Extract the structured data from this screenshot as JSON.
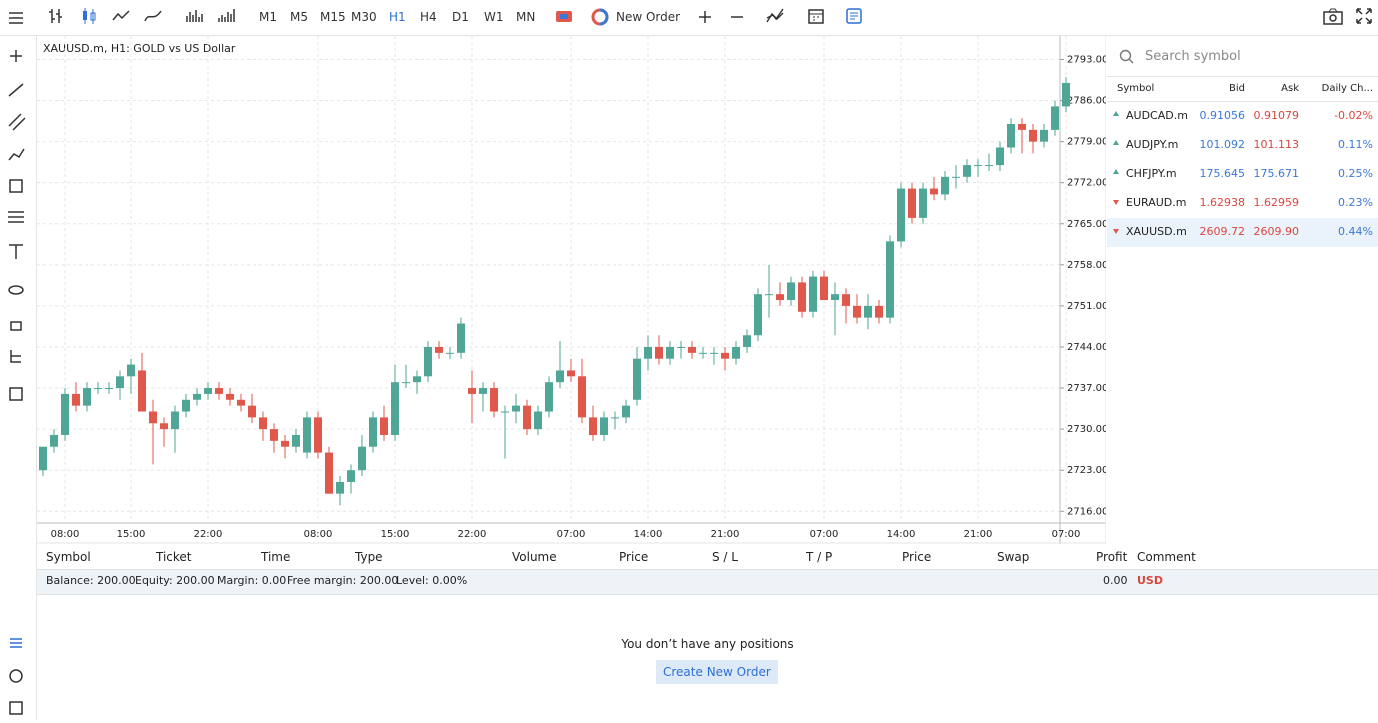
{
  "toolbar": {
    "timeframes": [
      "M1",
      "M5",
      "M15",
      "M30",
      "H1",
      "H4",
      "D1",
      "W1",
      "MN"
    ],
    "active_timeframe": "H1",
    "new_order": "New Order"
  },
  "chart": {
    "type": "candlestick",
    "title": "XAUUSD.m, H1: GOLD vs US Dollar",
    "up_color": "#4fa596",
    "down_color": "#e0574b",
    "ylim": [
      2714,
      2797
    ],
    "yticks": [
      {
        "value": 2793,
        "label": "2793.00"
      },
      {
        "value": 2786,
        "label": "2786.00"
      },
      {
        "value": 2779,
        "label": "2779.00"
      },
      {
        "value": 2772,
        "label": "2772.00"
      },
      {
        "value": 2765,
        "label": "2765.00"
      },
      {
        "value": 2758,
        "label": "2758.00"
      },
      {
        "value": 2751,
        "label": "2751.00"
      },
      {
        "value": 2744,
        "label": "2744.00"
      },
      {
        "value": 2737,
        "label": "2737.00"
      },
      {
        "value": 2730,
        "label": "2730.00"
      },
      {
        "value": 2723,
        "label": "2723.00"
      },
      {
        "value": 2716,
        "label": "2716.00"
      }
    ],
    "xlabels": [
      "08:00",
      "15:00",
      "22:00",
      "08:00",
      "15:00",
      "22:00",
      "07:00",
      "14:00",
      "21:00",
      "07:00",
      "14:00",
      "21:00",
      "07:00"
    ],
    "candles": [
      [
        2723,
        2727,
        2722,
        2727
      ],
      [
        2727,
        2730,
        2726,
        2729
      ],
      [
        2729,
        2737,
        2728,
        2736
      ],
      [
        2736,
        2738,
        2733,
        2734
      ],
      [
        2734,
        2738,
        2733,
        2737
      ],
      [
        2737,
        2738,
        2736,
        2737
      ],
      [
        2737,
        2738,
        2736,
        2737
      ],
      [
        2737,
        2740,
        2735,
        2739
      ],
      [
        2739,
        2742,
        2736,
        2741
      ],
      [
        2740,
        2743,
        2733,
        2733
      ],
      [
        2733,
        2735,
        2724,
        2731
      ],
      [
        2731,
        2732,
        2727,
        2730
      ],
      [
        2730,
        2734,
        2726,
        2733
      ],
      [
        2733,
        2736,
        2732,
        2735
      ],
      [
        2735,
        2737,
        2734,
        2736
      ],
      [
        2736,
        2738,
        2735,
        2737
      ],
      [
        2737,
        2738,
        2735,
        2736
      ],
      [
        2736,
        2737,
        2734,
        2735
      ],
      [
        2735,
        2736,
        2733,
        2734
      ],
      [
        2734,
        2736,
        2731,
        2732
      ],
      [
        2732,
        2733,
        2728,
        2730
      ],
      [
        2730,
        2731,
        2726,
        2728
      ],
      [
        2728,
        2729,
        2725,
        2727
      ],
      [
        2727,
        2730,
        2726,
        2729
      ],
      [
        2726,
        2733,
        2725,
        2732
      ],
      [
        2732,
        2733,
        2725,
        2726
      ],
      [
        2726,
        2727,
        2719,
        2719
      ],
      [
        2719,
        2722,
        2717,
        2721
      ],
      [
        2721,
        2724,
        2719,
        2723
      ],
      [
        2723,
        2729,
        2722,
        2727
      ],
      [
        2727,
        2733,
        2726,
        2732
      ],
      [
        2732,
        2734,
        2728,
        2729
      ],
      [
        2729,
        2741,
        2728,
        2738
      ],
      [
        2738,
        2741,
        2737,
        2738
      ],
      [
        2738,
        2740,
        2736,
        2739
      ],
      [
        2739,
        2745,
        2738,
        2744
      ],
      [
        2744,
        2745,
        2742,
        2743
      ],
      [
        2743,
        2744,
        2742,
        2743
      ],
      [
        2743,
        2749,
        2742,
        2748
      ],
      [
        2737,
        2740,
        2731,
        2736
      ],
      [
        2736,
        2738,
        2733,
        2737
      ],
      [
        2737,
        2738,
        2732,
        2733
      ],
      [
        2733,
        2734,
        2725,
        2733
      ],
      [
        2733,
        2736,
        2731,
        2734
      ],
      [
        2734,
        2735,
        2729,
        2730
      ],
      [
        2730,
        2734,
        2729,
        2733
      ],
      [
        2733,
        2739,
        2732,
        2738
      ],
      [
        2738,
        2745,
        2737,
        2740
      ],
      [
        2740,
        2742,
        2738,
        2739
      ],
      [
        2739,
        2742,
        2731,
        2732
      ],
      [
        2732,
        2734,
        2728,
        2729
      ],
      [
        2729,
        2733,
        2728,
        2732
      ],
      [
        2732,
        2733,
        2730,
        2732
      ],
      [
        2732,
        2735,
        2731,
        2734
      ],
      [
        2735,
        2744,
        2734,
        2742
      ],
      [
        2742,
        2746,
        2740,
        2744
      ],
      [
        2744,
        2746,
        2741,
        2742
      ],
      [
        2742,
        2745,
        2741,
        2744
      ],
      [
        2744,
        2745,
        2742,
        2744
      ],
      [
        2744,
        2745,
        2742,
        2743
      ],
      [
        2743,
        2744,
        2742,
        2743
      ],
      [
        2743,
        2744,
        2741,
        2743
      ],
      [
        2743,
        2744,
        2740,
        2742
      ],
      [
        2742,
        2745,
        2741,
        2744
      ],
      [
        2744,
        2747,
        2743,
        2746
      ],
      [
        2746,
        2754,
        2745,
        2753
      ],
      [
        2753,
        2758,
        2749,
        2753
      ],
      [
        2753,
        2755,
        2751,
        2752
      ],
      [
        2752,
        2756,
        2751,
        2755
      ],
      [
        2755,
        2756,
        2749,
        2750
      ],
      [
        2750,
        2757,
        2749,
        2756
      ],
      [
        2756,
        2757,
        2752,
        2752
      ],
      [
        2752,
        2755,
        2746,
        2753
      ],
      [
        2753,
        2754,
        2748,
        2751
      ],
      [
        2751,
        2753,
        2748,
        2749
      ],
      [
        2749,
        2753,
        2747,
        2751
      ],
      [
        2751,
        2752,
        2748,
        2749
      ],
      [
        2749,
        2763,
        2748,
        2762
      ],
      [
        2762,
        2772,
        2761,
        2771
      ],
      [
        2771,
        2772,
        2765,
        2766
      ],
      [
        2766,
        2772,
        2765,
        2771
      ],
      [
        2771,
        2773,
        2769,
        2770
      ],
      [
        2770,
        2774,
        2769,
        2773
      ],
      [
        2773,
        2775,
        2771,
        2773
      ],
      [
        2773,
        2776,
        2772,
        2775
      ],
      [
        2775,
        2776,
        2773,
        2775
      ],
      [
        2775,
        2777,
        2774,
        2775
      ],
      [
        2775,
        2779,
        2774,
        2778
      ],
      [
        2778,
        2783,
        2777,
        2782
      ],
      [
        2782,
        2783,
        2777,
        2781
      ],
      [
        2781,
        2782,
        2777,
        2779
      ],
      [
        2779,
        2782,
        2778,
        2781
      ],
      [
        2781,
        2786,
        2780,
        2785
      ],
      [
        2785,
        2790,
        2784,
        2789
      ]
    ]
  },
  "watchlist": {
    "search_placeholder": "Search symbol",
    "headers": [
      "Symbol",
      "Bid",
      "Ask",
      "Daily Ch..."
    ],
    "rows": [
      {
        "symbol": "AUDCAD.m",
        "direction": "up",
        "bid": "0.91056",
        "ask": "0.91079",
        "change": "-0.02%",
        "bid_color": "#3b78d8",
        "ask_color": "#d9473d",
        "change_color": "#d9473d"
      },
      {
        "symbol": "AUDJPY.m",
        "direction": "up",
        "bid": "101.092",
        "ask": "101.113",
        "change": "0.11%",
        "bid_color": "#3b78d8",
        "ask_color": "#d9473d",
        "change_color": "#3b78d8"
      },
      {
        "symbol": "CHFJPY.m",
        "direction": "up",
        "bid": "175.645",
        "ask": "175.671",
        "change": "0.25%",
        "bid_color": "#3b78d8",
        "ask_color": "#3b78d8",
        "change_color": "#3b78d8"
      },
      {
        "symbol": "EURAUD.m",
        "direction": "down",
        "bid": "1.62938",
        "ask": "1.62959",
        "change": "0.23%",
        "bid_color": "#d9473d",
        "ask_color": "#d9473d",
        "change_color": "#3b78d8"
      },
      {
        "symbol": "XAUUSD.m",
        "direction": "down",
        "bid": "2609.72",
        "ask": "2609.90",
        "change": "0.44%",
        "bid_color": "#d9473d",
        "ask_color": "#d9473d",
        "change_color": "#3b78d8",
        "selected": true
      }
    ]
  },
  "positions": {
    "headers": [
      "Symbol",
      "Ticket",
      "Time",
      "Type",
      "Volume",
      "Price",
      "S / L",
      "T / P",
      "Price",
      "Swap",
      "Profit",
      "Comment"
    ],
    "summary": [
      "Balance: 200.00",
      "Equity: 200.00",
      "Margin: 0.00",
      "Free margin: 200.00",
      "Level: 0.00%"
    ],
    "profit": "0.00",
    "currency": "USD",
    "empty_message": "You don’t have any positions",
    "create_button": "Create New Order"
  }
}
